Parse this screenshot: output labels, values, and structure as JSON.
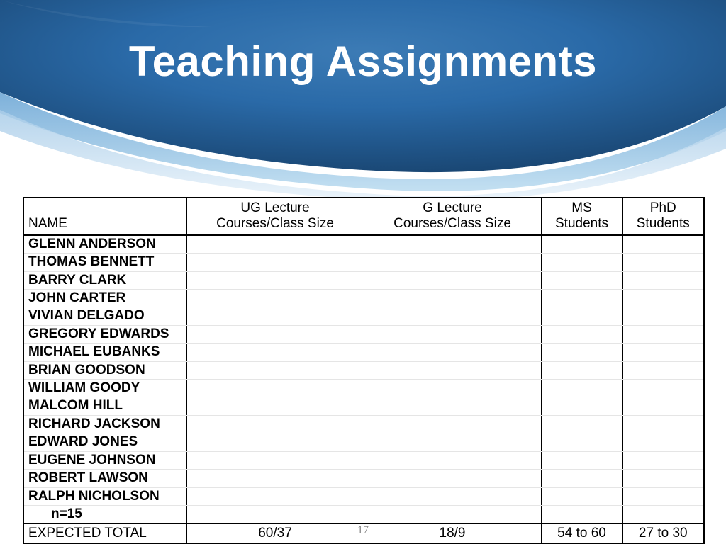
{
  "slide": {
    "title": "Teaching Assignments",
    "page_number": "17",
    "banner": {
      "gradient_top": "#1a4a7a",
      "gradient_mid": "#2a6aa8",
      "gradient_bottom": "#4a8fc8",
      "swoosh_light": "#a8cce8",
      "swoosh_mid": "#6fa8d6"
    }
  },
  "table": {
    "headers": {
      "name": "NAME",
      "ug": "UG Lecture Courses/Class Size",
      "g": "G Lecture Courses/Class Size",
      "ms": "MS Students",
      "phd": "PhD Students"
    },
    "names": [
      "GLENN ANDERSON",
      "THOMAS BENNETT",
      "BARRY CLARK",
      "JOHN CARTER",
      "VIVIAN DELGADO",
      "GREGORY EDWARDS",
      "MICHAEL EUBANKS",
      "BRIAN GOODSON",
      "WILLIAM GOODY",
      "MALCOM HILL",
      "RICHARD JACKSON",
      "EDWARD JONES",
      "EUGENE JOHNSON",
      "ROBERT LAWSON",
      "RALPH NICHOLSON"
    ],
    "count_label": "n=15",
    "footer": {
      "label": "EXPECTED TOTAL",
      "ug": "60/37",
      "g": "18/9",
      "ms": "54 to 60",
      "phd": "27 to 30"
    }
  }
}
